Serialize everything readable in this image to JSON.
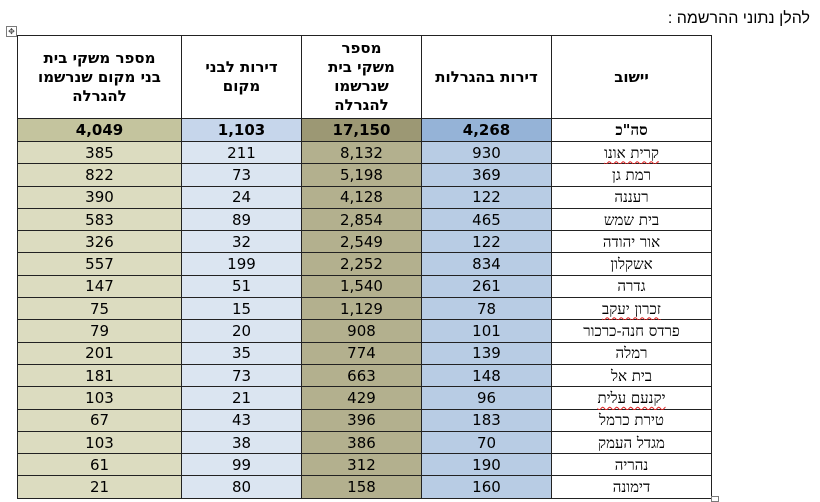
{
  "document": {
    "title": "להלן נתוני ההרשמה :"
  },
  "table": {
    "headers": {
      "settlement": "יישוב",
      "lottery_units": "דירות בהגרלות",
      "registered_households": "מספר\nמשקי בית\nשנרשמו\nלהגרלה",
      "local_units": "דירות לבני\nמקום",
      "local_registered_households": "מספר משקי בית\nבני מקום שנרשמו\nלהגרלה"
    },
    "total": {
      "settlement": "סה\"כ",
      "lottery_units": "4,268",
      "registered_households": "17,150",
      "local_units": "1,103",
      "local_registered_households": "4,049"
    },
    "rows": [
      {
        "settlement": "קרית אונו",
        "lottery_units": "930",
        "registered_households": "8,132",
        "local_units": "211",
        "local_registered_households": "385",
        "spellcheck": true
      },
      {
        "settlement": "רמת גן",
        "lottery_units": "369",
        "registered_households": "5,198",
        "local_units": "73",
        "local_registered_households": "822",
        "spellcheck": false
      },
      {
        "settlement": "רעננה",
        "lottery_units": "122",
        "registered_households": "4,128",
        "local_units": "24",
        "local_registered_households": "390",
        "spellcheck": false
      },
      {
        "settlement": "בית שמש",
        "lottery_units": "465",
        "registered_households": "2,854",
        "local_units": "89",
        "local_registered_households": "583",
        "spellcheck": false
      },
      {
        "settlement": "אור יהודה",
        "lottery_units": "122",
        "registered_households": "2,549",
        "local_units": "32",
        "local_registered_households": "326",
        "spellcheck": false
      },
      {
        "settlement": "אשקלון",
        "lottery_units": "834",
        "registered_households": "2,252",
        "local_units": "199",
        "local_registered_households": "557",
        "spellcheck": false
      },
      {
        "settlement": "גדרה",
        "lottery_units": "261",
        "registered_households": "1,540",
        "local_units": "51",
        "local_registered_households": "147",
        "spellcheck": false
      },
      {
        "settlement": "זכרון יעקב",
        "lottery_units": "78",
        "registered_households": "1,129",
        "local_units": "15",
        "local_registered_households": "75",
        "spellcheck": true
      },
      {
        "settlement": "פרדס חנה-כרכור",
        "lottery_units": "101",
        "registered_households": "908",
        "local_units": "20",
        "local_registered_households": "79",
        "spellcheck": false
      },
      {
        "settlement": "רמלה",
        "lottery_units": "139",
        "registered_households": "774",
        "local_units": "35",
        "local_registered_households": "201",
        "spellcheck": false
      },
      {
        "settlement": "בית אל",
        "lottery_units": "148",
        "registered_households": "663",
        "local_units": "73",
        "local_registered_households": "181",
        "spellcheck": false
      },
      {
        "settlement": "יקנעם עלית",
        "lottery_units": "96",
        "registered_households": "429",
        "local_units": "21",
        "local_registered_households": "103",
        "spellcheck": true
      },
      {
        "settlement": "טירת כרמל",
        "lottery_units": "183",
        "registered_households": "396",
        "local_units": "43",
        "local_registered_households": "67",
        "spellcheck": false
      },
      {
        "settlement": "מגדל העמק",
        "lottery_units": "70",
        "registered_households": "386",
        "local_units": "38",
        "local_registered_households": "103",
        "spellcheck": false
      },
      {
        "settlement": "נהריה",
        "lottery_units": "190",
        "registered_households": "312",
        "local_units": "99",
        "local_registered_households": "61",
        "spellcheck": false
      },
      {
        "settlement": "דימונה",
        "lottery_units": "160",
        "registered_households": "158",
        "local_units": "80",
        "local_registered_households": "21",
        "spellcheck": false
      }
    ]
  },
  "colors": {
    "lottery_column": "#b8cce4",
    "registered_column": "#b3b08e",
    "locals_column": "#dbe5f1",
    "locals_registered_column": "#dcdcc0"
  }
}
